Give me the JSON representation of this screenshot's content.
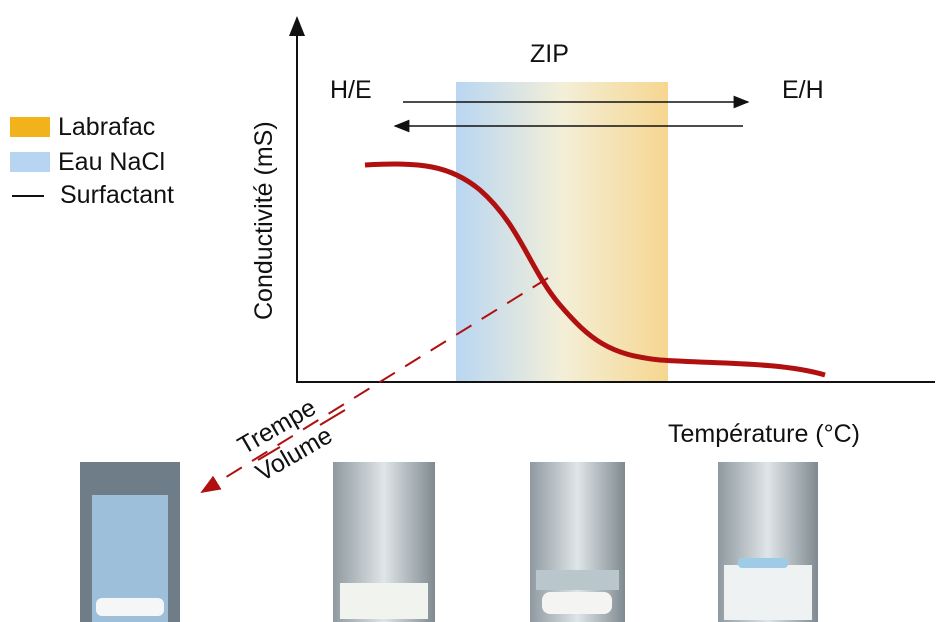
{
  "legend": {
    "items": [
      "Labrafac",
      "Eau NaCl",
      "Surfactant"
    ]
  },
  "axes": {
    "y_label": "Conductivité (mS)",
    "x_label": "Température (°C)"
  },
  "annotations": {
    "zip": "ZIP",
    "left_phase": "H/E",
    "right_phase": "E/H",
    "quench": "Trempe",
    "volume": "Volume"
  }
}
